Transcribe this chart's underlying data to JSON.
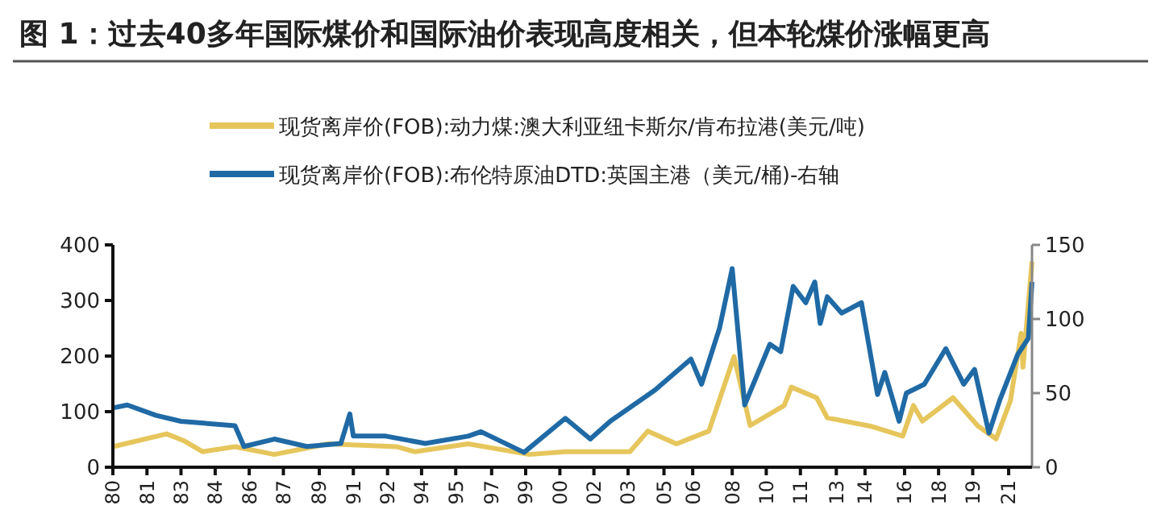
{
  "chart_data": {
    "type": "line",
    "title": "图 1：过去40多年国际煤价和国际油价表现高度相关，但本轮煤价涨幅更高",
    "legend": "top",
    "grid": false,
    "xlim": [
      "1980-01",
      "2022-09"
    ],
    "xticks": [
      {
        "value": "1980-01",
        "label": "80"
      },
      {
        "value": "1981-08",
        "label": "81"
      },
      {
        "value": "1983-03",
        "label": "83"
      },
      {
        "value": "1984-10",
        "label": "84"
      },
      {
        "value": "1986-05",
        "label": "86"
      },
      {
        "value": "1987-12",
        "label": "87"
      },
      {
        "value": "1989-08",
        "label": "89"
      },
      {
        "value": "1991-03",
        "label": "91"
      },
      {
        "value": "1992-10",
        "label": "92"
      },
      {
        "value": "1994-05",
        "label": "94"
      },
      {
        "value": "1995-12",
        "label": "95"
      },
      {
        "value": "1997-08",
        "label": "97"
      },
      {
        "value": "1999-03",
        "label": "99"
      },
      {
        "value": "2000-10",
        "label": "00"
      },
      {
        "value": "2002-05",
        "label": "02"
      },
      {
        "value": "2003-12",
        "label": "03"
      },
      {
        "value": "2005-08",
        "label": "05"
      },
      {
        "value": "2006-12",
        "label": "06"
      },
      {
        "value": "2008-10",
        "label": "08"
      },
      {
        "value": "2010-05",
        "label": "10"
      },
      {
        "value": "2011-12",
        "label": "11"
      },
      {
        "value": "2013-08",
        "label": "13"
      },
      {
        "value": "2014-12",
        "label": "14"
      },
      {
        "value": "2016-10",
        "label": "16"
      },
      {
        "value": "2018-05",
        "label": "18"
      },
      {
        "value": "2019-12",
        "label": "19"
      },
      {
        "value": "2021-08",
        "label": "21"
      }
    ],
    "ylim": [
      0,
      400
    ],
    "yticks": [
      0,
      100,
      200,
      300,
      400
    ],
    "y2lim": [
      0,
      150
    ],
    "y2ticks": [
      0,
      50,
      100,
      150
    ],
    "series": [
      {
        "name": "现货离岸价(FOB):动力煤:澳大利亚纽卡斯尔/肯布拉港(美元/吨)",
        "color": "#e6c65c",
        "x": [
          "1980-01",
          "1982-07",
          "1983-05",
          "1984-03",
          "1985-09",
          "1987-07",
          "1990-01",
          "1993-03",
          "1994-01",
          "1996-07",
          "1999-05",
          "2001-01",
          "2004-01",
          "2004-11",
          "2006-03",
          "2007-09",
          "2008-11",
          "2009-08",
          "2011-03",
          "2011-07",
          "2012-09",
          "2013-03",
          "2015-03",
          "2016-09",
          "2017-03",
          "2017-08",
          "2019-01",
          "2020-03",
          "2021-01",
          "2021-09",
          "2022-03",
          "2022-04",
          "2022-09"
        ],
        "values": [
          37,
          60,
          47,
          28,
          37,
          23,
          42,
          37,
          28,
          42,
          23,
          28,
          28,
          65,
          42,
          65,
          199,
          75,
          111,
          144,
          125,
          89,
          74,
          56,
          111,
          83,
          125,
          74,
          51,
          120,
          241,
          180,
          370
        ]
      },
      {
        "name": "现货离岸价(FOB):布伦特原油DTD:英国主港（美元/桶)-右轴",
        "color": "#1f6aa5",
        "axis": "y2",
        "x": [
          "1980-01",
          "1980-09",
          "1982-01",
          "1983-03",
          "1985-09",
          "1986-02",
          "1987-07",
          "1989-01",
          "1990-08",
          "1991-01",
          "1991-03",
          "1992-09",
          "1994-07",
          "1996-07",
          "1997-02",
          "1999-02",
          "2001-01",
          "2002-03",
          "2003-02",
          "2005-03",
          "2006-11",
          "2007-05",
          "2008-03",
          "2008-10",
          "2009-05",
          "2010-07",
          "2011-01",
          "2011-08",
          "2012-03",
          "2012-08",
          "2012-11",
          "2013-03",
          "2013-11",
          "2014-10",
          "2015-07",
          "2015-11",
          "2016-07",
          "2016-11",
          "2017-09",
          "2018-09",
          "2019-07",
          "2020-01",
          "2020-09",
          "2021-03",
          "2022-01",
          "2022-07",
          "2022-09"
        ],
        "values": [
          40,
          42,
          35,
          31,
          28,
          14,
          19,
          14,
          16,
          36,
          21,
          21,
          16,
          21,
          24,
          10,
          33,
          19,
          31,
          52,
          73,
          56,
          94,
          134,
          42,
          83,
          78,
          122,
          111,
          125,
          97,
          115,
          104,
          111,
          49,
          64,
          31,
          50,
          56,
          80,
          56,
          66,
          23,
          45,
          76,
          87,
          125
        ]
      }
    ]
  }
}
